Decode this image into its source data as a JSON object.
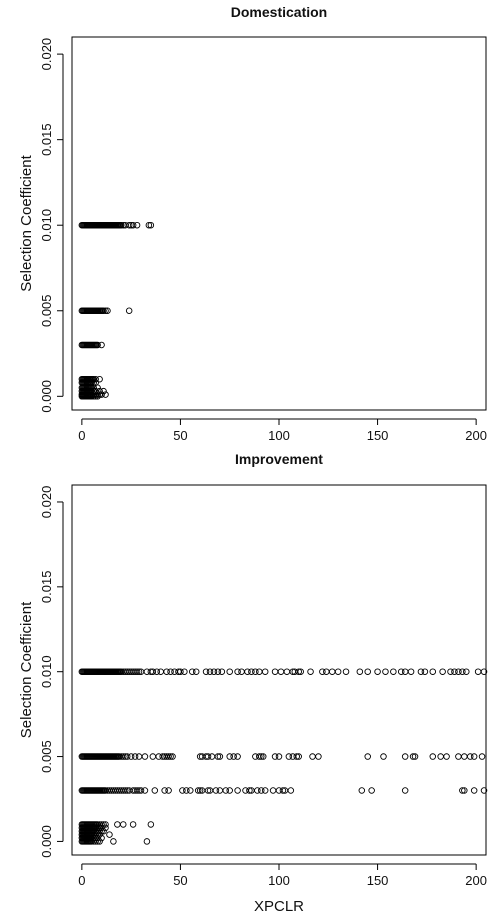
{
  "chart_data": [
    {
      "type": "scatter",
      "title": "Domestication",
      "xlabel": "",
      "ylabel": "Selection Coefficient",
      "xlim": [
        -5,
        205
      ],
      "ylim": [
        -0.0008,
        0.021
      ],
      "xticks": [
        "0",
        "50",
        "100",
        "150",
        "200"
      ],
      "yticks": [
        "0.000",
        "0.005",
        "0.010",
        "0.015",
        "0.020"
      ],
      "groups": [
        {
          "y": 0.01,
          "x": [
            0,
            0.5,
            1,
            1.5,
            2,
            2.5,
            3,
            3.5,
            4,
            4.5,
            5,
            5.5,
            6,
            6.5,
            7,
            7.5,
            8,
            8.5,
            9,
            9.5,
            10,
            10.5,
            11,
            11.5,
            12,
            12.5,
            13,
            13.5,
            14,
            14.5,
            15,
            15.5,
            16,
            16.5,
            17,
            17.5,
            18,
            18.5,
            19,
            19.5,
            20,
            21,
            22,
            24,
            25,
            26,
            28,
            34,
            35
          ]
        },
        {
          "y": 0.005,
          "x": [
            0,
            0.5,
            1,
            1.5,
            2,
            2.5,
            3,
            3.5,
            4,
            4.5,
            5,
            5.5,
            6,
            6.5,
            7,
            7.5,
            8,
            8.5,
            9,
            9.5,
            10,
            10.5,
            11,
            12,
            13,
            24
          ]
        },
        {
          "y": 0.003,
          "x": [
            0,
            0.5,
            1,
            1.5,
            2,
            2.5,
            3,
            3.5,
            4,
            4.5,
            5,
            5.5,
            6,
            6.5,
            7,
            7.5,
            8,
            10
          ]
        },
        {
          "y": 0.001,
          "x": [
            0,
            0.5,
            1,
            1.5,
            2,
            2.5,
            3,
            3.5,
            4,
            4.5,
            5,
            5.5,
            6,
            7,
            9
          ]
        },
        {
          "y": 0.0008,
          "x": [
            0,
            0.5,
            1,
            1.5,
            2,
            2.5,
            3,
            3.5,
            4,
            4.5,
            5,
            6,
            7
          ]
        },
        {
          "y": 0.0005,
          "x": [
            0,
            0.5,
            1,
            1.5,
            2,
            2.5,
            3,
            3.5,
            4,
            4.5,
            5,
            6,
            8
          ]
        },
        {
          "y": 0.0003,
          "x": [
            0,
            0.5,
            1,
            1.5,
            2,
            2.5,
            3,
            3.5,
            4,
            4.5,
            5,
            6,
            7,
            9,
            11
          ]
        },
        {
          "y": 0.0001,
          "x": [
            0,
            0.5,
            1,
            1.5,
            2,
            2.5,
            3,
            3.5,
            4,
            4.5,
            5,
            6,
            7,
            8,
            9,
            10,
            12
          ]
        },
        {
          "y": 0.0,
          "x": [
            0,
            0.5,
            1,
            1.5,
            2,
            2.5,
            3,
            3.5,
            4,
            4.5,
            5,
            6,
            7,
            8
          ]
        }
      ]
    },
    {
      "type": "scatter",
      "title": "Improvement",
      "xlabel": "XPCLR",
      "ylabel": "Selection Coefficient",
      "xlim": [
        -5,
        205
      ],
      "ylim": [
        -0.0008,
        0.021
      ],
      "xticks": [
        "0",
        "50",
        "100",
        "150",
        "200"
      ],
      "yticks": [
        "0.000",
        "0.005",
        "0.010",
        "0.015",
        "0.020"
      ],
      "groups": [
        {
          "y": 0.01,
          "x": [
            0,
            0.5,
            1,
            1.5,
            2,
            2.5,
            3,
            3.5,
            4,
            4.5,
            5,
            5.5,
            6,
            6.5,
            7,
            7.5,
            8,
            8.5,
            9,
            9.5,
            10,
            10.5,
            11,
            11.5,
            12,
            12.5,
            13,
            13.5,
            14,
            14.5,
            15,
            15.5,
            16,
            16.5,
            17,
            17.5,
            18,
            18.5,
            19,
            19.5,
            20,
            21,
            22,
            23,
            24,
            25,
            26,
            27,
            28,
            29,
            30,
            33,
            35,
            36,
            38,
            40,
            43,
            45,
            47,
            49,
            50,
            52,
            56,
            58,
            63,
            65,
            67,
            69,
            71,
            75,
            79,
            81,
            84,
            86,
            88,
            90,
            93,
            98,
            101,
            104,
            107,
            108,
            110,
            111,
            116,
            122,
            124,
            127,
            130,
            134,
            141,
            145,
            150,
            154,
            158,
            162,
            164,
            167,
            172,
            174,
            178,
            183,
            187,
            189,
            191,
            193,
            195,
            201,
            204
          ]
        },
        {
          "y": 0.005,
          "x": [
            0,
            0.5,
            1,
            1.5,
            2,
            2.5,
            3,
            3.5,
            4,
            4.5,
            5,
            5.5,
            6,
            6.5,
            7,
            7.5,
            8,
            8.5,
            9,
            9.5,
            10,
            10.5,
            11,
            11.5,
            12,
            12.5,
            13,
            13.5,
            14,
            14.5,
            15,
            15.5,
            16,
            16.5,
            17,
            17.5,
            18,
            18.5,
            19,
            20,
            21,
            22,
            23,
            25,
            27,
            29,
            32,
            36,
            39,
            41,
            42,
            43,
            44,
            45,
            46,
            60,
            61,
            63,
            64,
            66,
            69,
            70,
            75,
            77,
            79,
            88,
            90,
            91,
            92,
            98,
            100,
            105,
            107,
            109,
            110,
            117,
            120,
            145,
            153,
            164,
            168,
            169,
            178,
            182,
            185,
            191,
            194,
            197,
            199,
            203
          ]
        },
        {
          "y": 0.003,
          "x": [
            0,
            0.5,
            1,
            1.5,
            2,
            2.5,
            3,
            3.5,
            4,
            4.5,
            5,
            5.5,
            6,
            6.5,
            7,
            7.5,
            8,
            8.5,
            9,
            9.5,
            10,
            10.5,
            11,
            11.5,
            12,
            13,
            14,
            15,
            16,
            17,
            18,
            19,
            20,
            21,
            22,
            23,
            24,
            26,
            27,
            28,
            29,
            30,
            32,
            37,
            42,
            44,
            51,
            53,
            55,
            59,
            60,
            61,
            64,
            65,
            68,
            70,
            73,
            75,
            79,
            83,
            85,
            86,
            89,
            91,
            93,
            97,
            100,
            102,
            103,
            106,
            142,
            147,
            164,
            193,
            194,
            199,
            204
          ]
        },
        {
          "y": 0.001,
          "x": [
            0,
            0.5,
            1,
            1.5,
            2,
            2.5,
            3,
            3.5,
            4,
            4.5,
            5,
            5.5,
            6,
            6.5,
            7,
            7.5,
            8,
            9,
            10,
            11,
            12,
            18,
            21,
            26,
            35
          ]
        },
        {
          "y": 0.0008,
          "x": [
            0,
            0.5,
            1,
            1.5,
            2,
            2.5,
            3,
            3.5,
            4,
            4.5,
            5,
            5.5,
            6,
            6.5,
            7,
            8,
            9,
            10,
            12
          ]
        },
        {
          "y": 0.0006,
          "x": [
            0,
            0.5,
            1,
            1.5,
            2,
            2.5,
            3,
            3.5,
            4,
            4.5,
            5,
            5.5,
            6,
            7,
            8,
            9,
            10,
            11
          ]
        },
        {
          "y": 0.0004,
          "x": [
            0,
            0.5,
            1,
            1.5,
            2,
            2.5,
            3,
            3.5,
            4,
            4.5,
            5,
            6,
            7,
            8,
            9,
            14
          ]
        },
        {
          "y": 0.0002,
          "x": [
            0,
            0.5,
            1,
            1.5,
            2,
            2.5,
            3,
            3.5,
            4,
            4.5,
            5,
            6,
            7,
            8,
            10
          ]
        },
        {
          "y": 0.0,
          "x": [
            0,
            0.5,
            1,
            1.5,
            2,
            2.5,
            3,
            3.5,
            4,
            4.5,
            5,
            6,
            7,
            8,
            9,
            16,
            33
          ]
        }
      ]
    }
  ]
}
